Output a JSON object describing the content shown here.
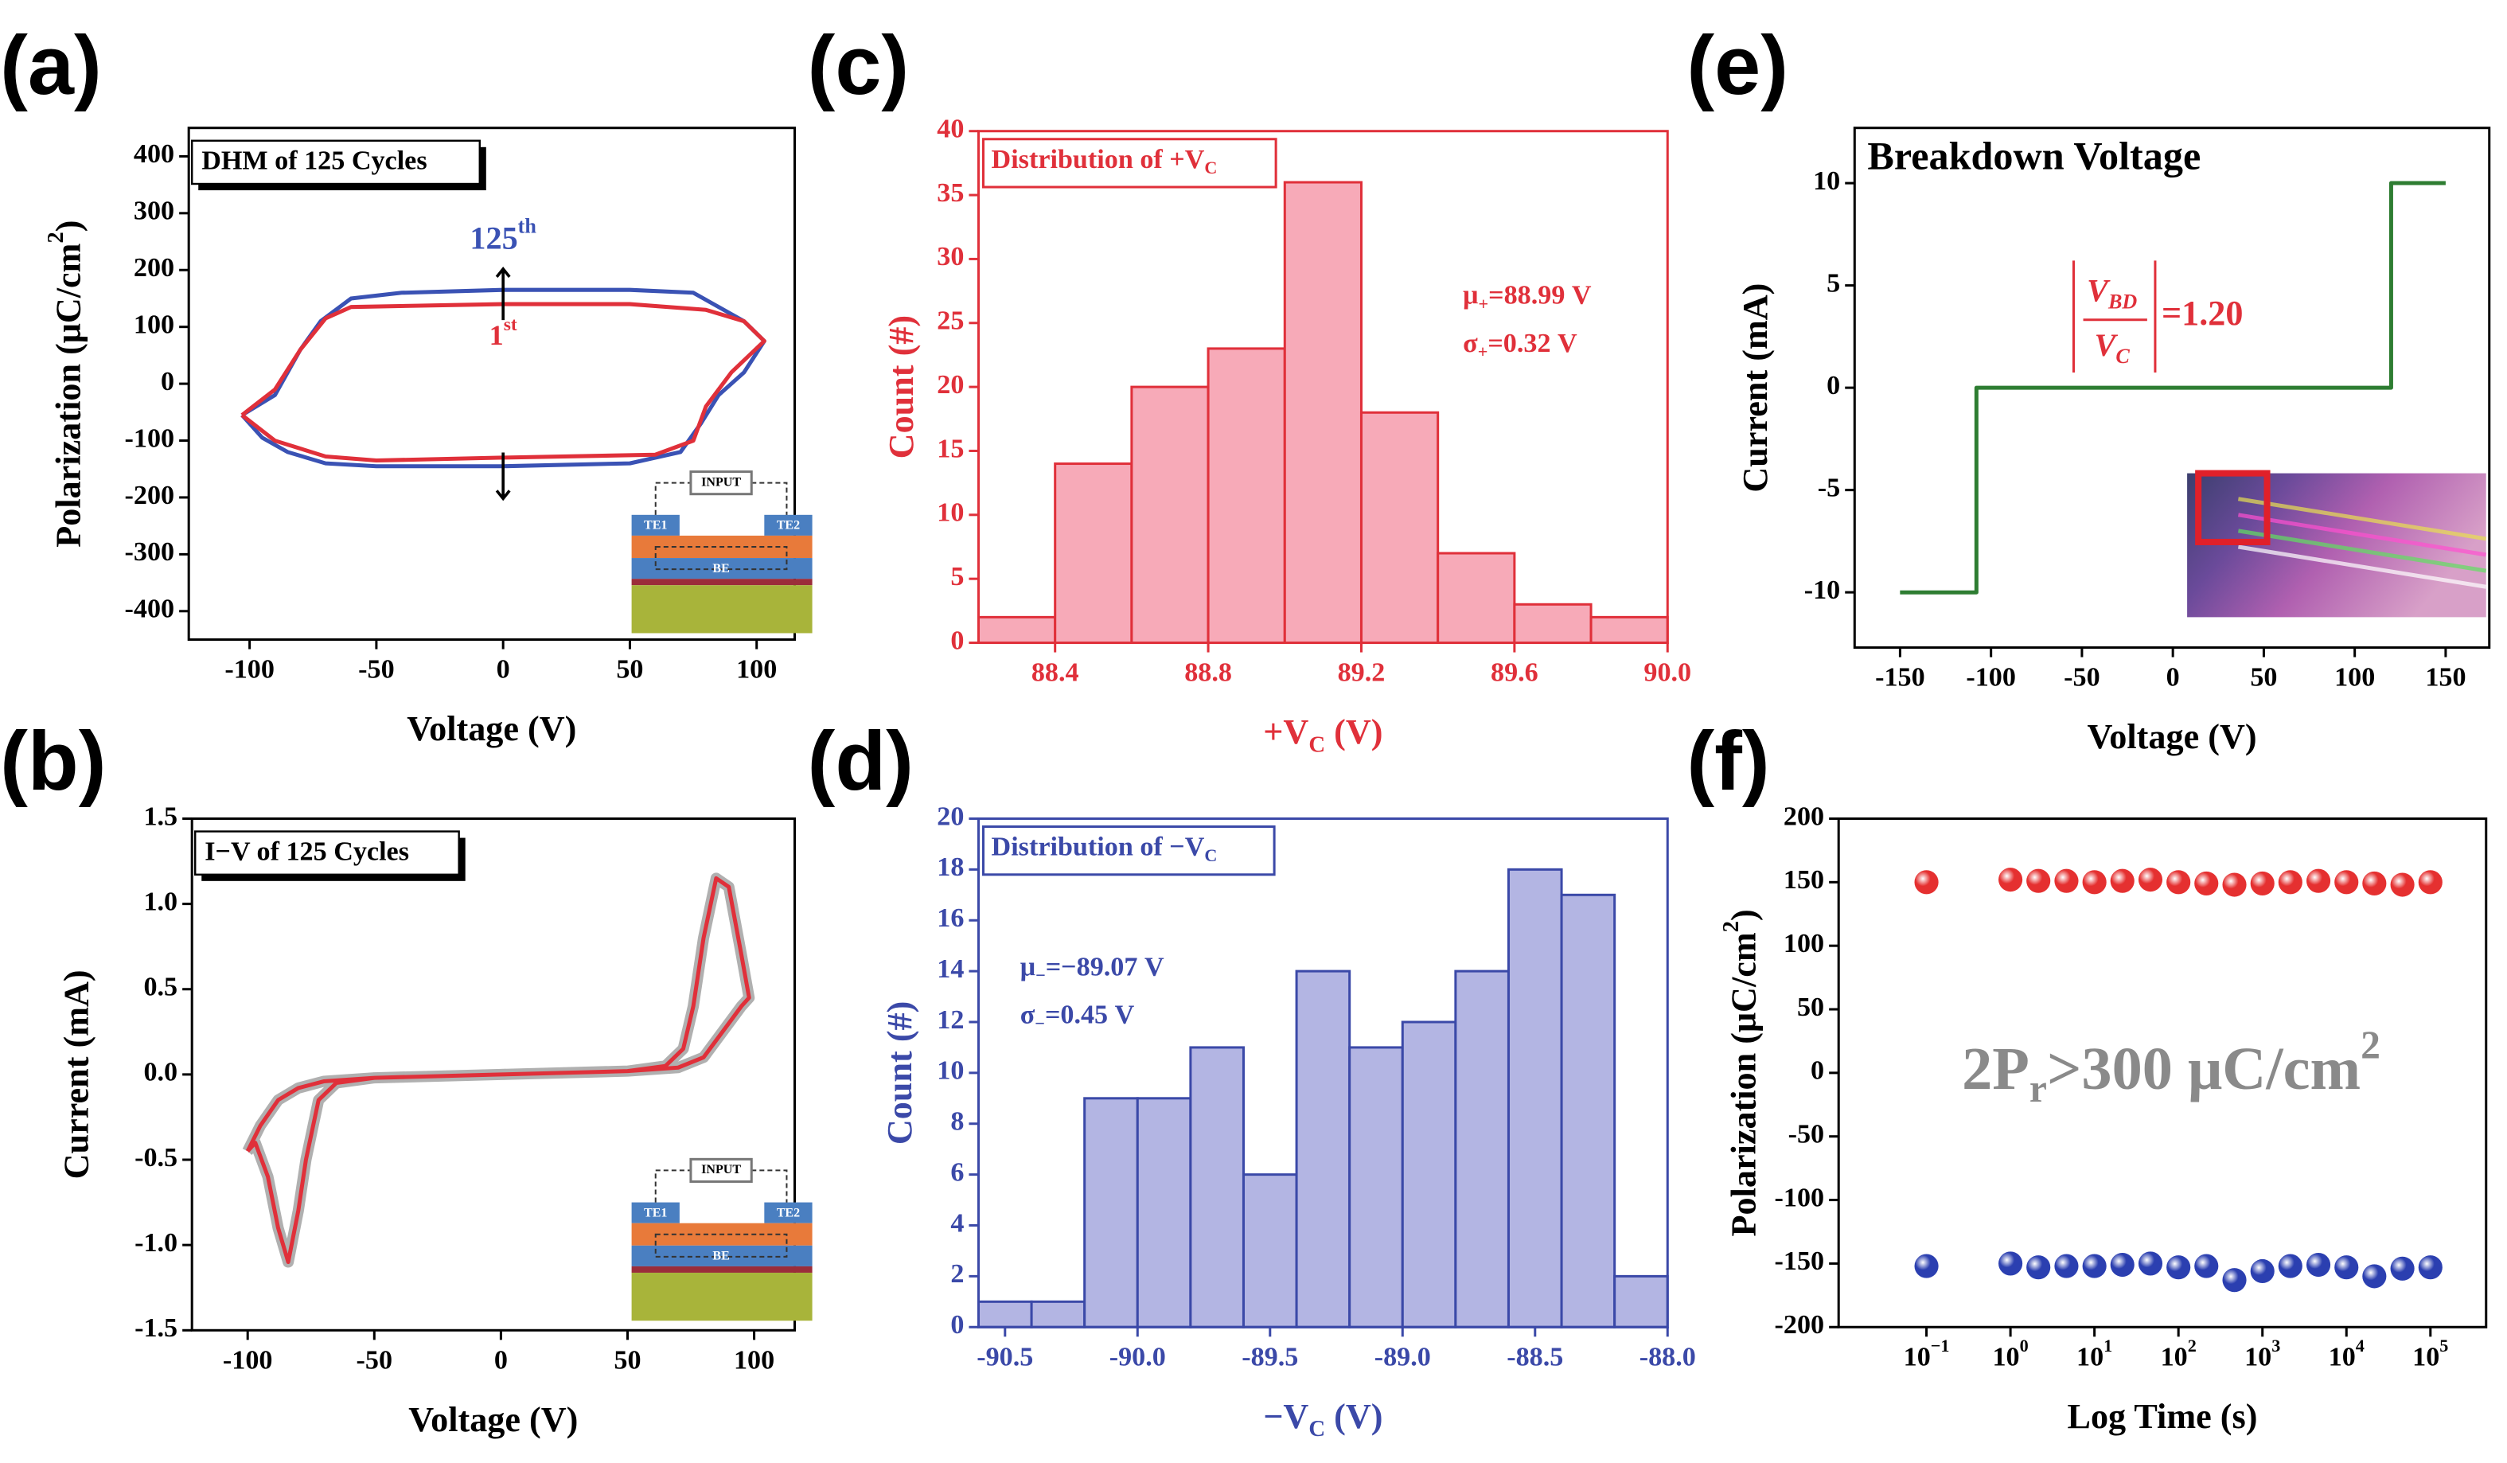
{
  "chart_data": [
    {
      "type": "line",
      "panel": "(a)",
      "title": "DHM of 125 Cycles",
      "x_label": "Voltage (V)",
      "y_label": [
        {
          "text": "Polarization (μC/cm"
        },
        {
          "text": "2",
          "script": "super"
        },
        {
          "text": ")"
        }
      ],
      "xlim": [
        -124,
        115
      ],
      "ylim": [
        -450,
        450
      ],
      "xticks": [
        -100,
        -50,
        0,
        50,
        100
      ],
      "yticks": [
        -400,
        -300,
        -200,
        -100,
        0,
        100,
        200,
        300,
        400
      ],
      "axis_color": "#000000",
      "series": [
        {
          "name": [
            {
              "text": "125"
            },
            {
              "text": "th",
              "script": "super"
            }
          ],
          "color": "#3a52b4",
          "x": [
            -103,
            -90,
            -80,
            -72,
            -60,
            -40,
            0,
            50,
            75,
            95,
            103,
            95,
            85,
            78,
            70,
            50,
            0,
            -50,
            -70,
            -85,
            -95,
            -103
          ],
          "values": [
            -55,
            -20,
            60,
            110,
            150,
            160,
            165,
            165,
            160,
            110,
            75,
            20,
            -20,
            -70,
            -120,
            -140,
            -145,
            -145,
            -140,
            -120,
            -95,
            -55
          ]
        },
        {
          "name": [
            {
              "text": "1"
            },
            {
              "text": "st",
              "script": "super"
            }
          ],
          "color": "#e0303a",
          "x": [
            -103,
            -90,
            -80,
            -70,
            -60,
            0,
            50,
            80,
            95,
            103,
            90,
            80,
            75,
            60,
            0,
            -50,
            -70,
            -90,
            -103
          ],
          "values": [
            -55,
            -10,
            60,
            115,
            135,
            140,
            140,
            130,
            110,
            75,
            20,
            -40,
            -100,
            -125,
            -130,
            -135,
            -128,
            -100,
            -55
          ]
        }
      ],
      "inset": {
        "input": "INPUT",
        "left": "TE1",
        "right": "TE2",
        "bottom": "BE"
      }
    },
    {
      "type": "line",
      "panel": "(b)",
      "title": "I−V of 125 Cycles",
      "x_label": "Voltage (V)",
      "y_label": "Current (mA)",
      "xlim": [
        -122,
        116
      ],
      "ylim": [
        -1.5,
        1.5
      ],
      "xticks": [
        -100,
        -50,
        0,
        50,
        100
      ],
      "yticks": [
        -1.5,
        {
          "value": -1,
          "label": "-1.0"
        },
        -0.5,
        {
          "value": 0,
          "label": "0.0"
        },
        0.5,
        {
          "value": 1,
          "label": "1.0"
        },
        1.5
      ],
      "axis_color": "#000000",
      "series": [
        {
          "color": "#e0303a",
          "halo_color": "#b0b0b0",
          "x": [
            -100,
            -95,
            -88,
            -80,
            -70,
            -50,
            0,
            50,
            65,
            72,
            76,
            80,
            85,
            90,
            95,
            98,
            95,
            90,
            80,
            70,
            50,
            0,
            -50,
            -65,
            -72,
            -77,
            -80,
            -84,
            -88,
            -92,
            -97,
            -100
          ],
          "values": [
            -0.45,
            -0.3,
            -0.15,
            -0.08,
            -0.04,
            -0.02,
            0,
            0.02,
            0.05,
            0.15,
            0.4,
            0.8,
            1.15,
            1.1,
            0.7,
            0.45,
            0.4,
            0.3,
            0.1,
            0.04,
            0.02,
            0,
            -0.02,
            -0.05,
            -0.15,
            -0.5,
            -0.8,
            -1.1,
            -0.9,
            -0.6,
            -0.4,
            -0.45
          ]
        }
      ],
      "inset": {
        "input": "INPUT",
        "left": "TE1",
        "right": "TE2",
        "bottom": "BE"
      }
    },
    {
      "type": "histogram",
      "panel": "(c)",
      "title": [
        {
          "text": "Distribution of +V"
        },
        {
          "text": "C",
          "script": "sub"
        }
      ],
      "x_label": [
        {
          "text": "+V"
        },
        {
          "text": "C",
          "script": "sub"
        },
        {
          "text": " (V)"
        }
      ],
      "y_label": "Count (#)",
      "bins": [
        88.2,
        88.4,
        88.6,
        88.8,
        89.0,
        89.2,
        89.4,
        89.6,
        89.8,
        90.0
      ],
      "counts": [
        2,
        14,
        20,
        23,
        36,
        18,
        7,
        3,
        2
      ],
      "xlim": [
        88.2,
        90.0
      ],
      "ylim": [
        0,
        40
      ],
      "xticks": [
        88.4,
        88.8,
        89.2,
        89.6,
        {
          "value": 90,
          "label": "90.0"
        }
      ],
      "yticks": [
        0,
        5,
        10,
        15,
        20,
        25,
        30,
        35,
        40
      ],
      "color": "#f7aab8",
      "edge_color": "#e0303a",
      "axis_color": "#e0303a",
      "annotations": [
        [
          {
            "text": "μ"
          },
          {
            "text": "+",
            "script": "sub"
          },
          {
            "text": "=88.99 V"
          }
        ],
        [
          {
            "text": "σ"
          },
          {
            "text": "+",
            "script": "sub"
          },
          {
            "text": "=0.32 V"
          }
        ]
      ]
    },
    {
      "type": "histogram",
      "panel": "(d)",
      "title": [
        {
          "text": "Distribution of −V"
        },
        {
          "text": "C",
          "script": "sub"
        }
      ],
      "x_label": [
        {
          "text": "−V"
        },
        {
          "text": "C",
          "script": "sub"
        },
        {
          "text": " (V)"
        }
      ],
      "y_label": "Count (#)",
      "bins": [
        -90.6,
        -90.4,
        -90.2,
        -90.0,
        -89.8,
        -89.6,
        -89.4,
        -89.2,
        -89.0,
        -88.8,
        -88.6,
        -88.4,
        -88.2,
        -88.0
      ],
      "counts": [
        1,
        1,
        9,
        9,
        11,
        6,
        14,
        11,
        12,
        14,
        18,
        17,
        2
      ],
      "xlim": [
        -90.6,
        -88.0
      ],
      "ylim": [
        0,
        20
      ],
      "xticks": [
        -90.5,
        {
          "value": -90,
          "label": "-90.0"
        },
        -89.5,
        {
          "value": -89,
          "label": "-89.0"
        },
        -88.5,
        {
          "value": -88,
          "label": "-88.0"
        }
      ],
      "yticks": [
        0,
        2,
        4,
        6,
        8,
        10,
        12,
        14,
        16,
        18,
        20
      ],
      "color": "#b3b5e3",
      "edge_color": "#3b49a8",
      "axis_color": "#3b49a8",
      "annotations": [
        [
          {
            "text": "μ"
          },
          {
            "text": "−",
            "script": "sub"
          },
          {
            "text": "=−89.07 V"
          }
        ],
        [
          {
            "text": "σ"
          },
          {
            "text": "−",
            "script": "sub"
          },
          {
            "text": "=0.45 V"
          }
        ]
      ]
    },
    {
      "type": "line",
      "panel": "(e)",
      "title": "Breakdown Voltage",
      "x_label": "Voltage (V)",
      "y_label": "Current (mA)",
      "xlim": [
        -175,
        174
      ],
      "ylim": [
        -12.7,
        12.7
      ],
      "xticks": [
        -150,
        -100,
        -50,
        0,
        50,
        100,
        150
      ],
      "yticks": [
        -10,
        -5,
        0,
        5,
        10
      ],
      "axis_color": "#000000",
      "series": [
        {
          "color": "#2e7d32",
          "x": [
            -150,
            -108,
            -108,
            120,
            120,
            150
          ],
          "values": [
            -10,
            -10,
            0,
            0,
            10,
            10
          ]
        }
      ],
      "annotation": {
        "numerator": [
          {
            "text": "V"
          },
          {
            "text": "BD",
            "script": "sub"
          }
        ],
        "denominator": [
          {
            "text": "V"
          },
          {
            "text": "C",
            "script": "sub"
          }
        ],
        "result": "=1.20",
        "color": "#e0303a"
      }
    },
    {
      "type": "scatter",
      "panel": "(f)",
      "x_label": "Log Time (s)",
      "y_label": [
        {
          "text": "Polarization (μC/cm"
        },
        {
          "text": "2",
          "script": "super"
        },
        {
          "text": ")"
        }
      ],
      "log_x": true,
      "xlim": [
        0.009,
        460000
      ],
      "ylim": [
        -200,
        200
      ],
      "xticks": [
        {
          "value": 0.1,
          "label": [
            {
              "text": "10"
            },
            {
              "text": "−1",
              "script": "super"
            }
          ]
        },
        {
          "value": 1,
          "label": [
            {
              "text": "10"
            },
            {
              "text": "0",
              "script": "super"
            }
          ]
        },
        {
          "value": 10,
          "label": [
            {
              "text": "10"
            },
            {
              "text": "1",
              "script": "super"
            }
          ]
        },
        {
          "value": 100,
          "label": [
            {
              "text": "10"
            },
            {
              "text": "2",
              "script": "super"
            }
          ]
        },
        {
          "value": 1000,
          "label": [
            {
              "text": "10"
            },
            {
              "text": "3",
              "script": "super"
            }
          ]
        },
        {
          "value": 10000,
          "label": [
            {
              "text": "10"
            },
            {
              "text": "4",
              "script": "super"
            }
          ]
        },
        {
          "value": 100000,
          "label": [
            {
              "text": "10"
            },
            {
              "text": "5",
              "script": "super"
            }
          ]
        }
      ],
      "yticks": [
        -200,
        -150,
        -100,
        -50,
        0,
        50,
        100,
        150,
        200
      ],
      "axis_color": "#000000",
      "x": [
        0.1,
        1,
        2.15,
        4.64,
        10,
        21.5,
        46.4,
        100,
        215,
        464,
        1000,
        2150,
        4640,
        10000,
        21500,
        46400,
        100000
      ],
      "series": [
        {
          "color": "#e53030",
          "values": [
            150,
            152,
            151,
            151,
            150,
            151,
            152,
            150,
            149,
            148,
            149,
            150,
            151,
            150,
            149,
            148,
            150
          ]
        },
        {
          "color": "#2b3fb0",
          "values": [
            -152,
            -150,
            -153,
            -152,
            -152,
            -151,
            -150,
            -153,
            -152,
            -163,
            -156,
            -152,
            -151,
            -153,
            -160,
            -154,
            -153
          ]
        }
      ],
      "annotation": [
        {
          "text": "2P"
        },
        {
          "text": "r",
          "script": "sub"
        },
        {
          "text": ">300 μC/cm"
        },
        {
          "text": "2",
          "script": "super"
        }
      ]
    }
  ]
}
